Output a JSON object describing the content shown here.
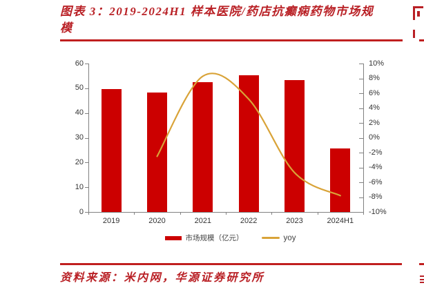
{
  "header": {
    "chart_label_line1": "图表 3：2019-2024H1 样本医院/药店抗癫痫药物市场规",
    "chart_label_line2": "模"
  },
  "footer": {
    "source_text": "资料来源：米内网，华源证券研究所"
  },
  "colors": {
    "accent_red": "#B92025",
    "rule_red": "#C01F1F",
    "bar_red": "#CC0000",
    "line_gold": "#D9A338",
    "axis_gray": "#808080",
    "label_gray": "#333333"
  },
  "chart_data": {
    "type": "bar",
    "combo": "bar+line",
    "title": "2019-2024H1 样本医院/药店抗癫痫药物市场规模",
    "categories": [
      "2019",
      "2020",
      "2021",
      "2022",
      "2023",
      "2024H1"
    ],
    "series": [
      {
        "name": "市场规模（亿元）",
        "type": "bar",
        "axis": "left",
        "color": "#CC0000",
        "values": [
          49.7,
          48.4,
          52.5,
          55.3,
          53.3,
          25.6
        ]
      },
      {
        "name": "yoy",
        "type": "line",
        "axis": "right",
        "color": "#D9A338",
        "unit": "%",
        "values": [
          null,
          -2.5,
          8.3,
          5.2,
          -4.7,
          -7.8
        ]
      }
    ],
    "left_axis": {
      "min": 0,
      "max": 60,
      "tick_labels": [
        "60",
        "50",
        "40",
        "30",
        "20",
        "10",
        "0"
      ]
    },
    "right_axis": {
      "min": -10,
      "max": 10,
      "tick_labels": [
        "10%",
        "8%",
        "6%",
        "4%",
        "2%",
        "0%",
        "-2%",
        "-4%",
        "-6%",
        "-8%",
        "-10%"
      ]
    },
    "grid": false,
    "legend_position": "bottom"
  }
}
